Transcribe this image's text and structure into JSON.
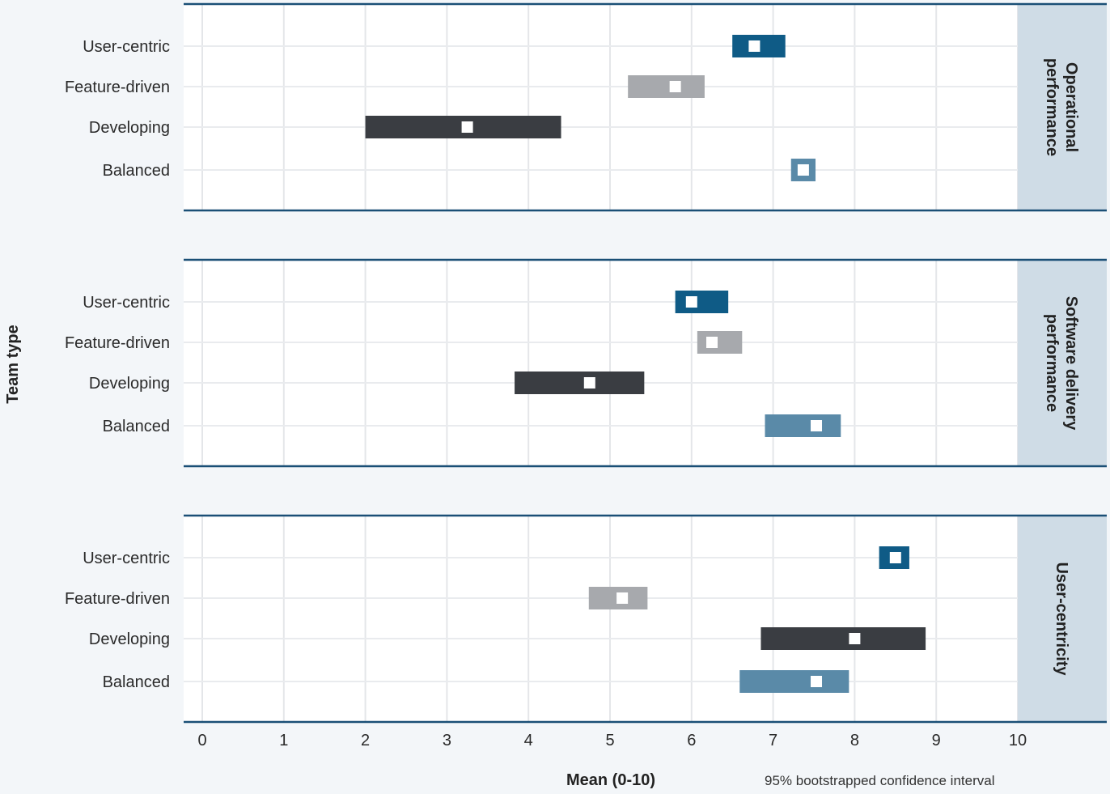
{
  "chart_data": {
    "type": "interval",
    "ylabel": "Team type",
    "xlabel": "Mean (0-10)",
    "note": "95% bootstrapped confidence interval",
    "xlim": [
      0,
      10
    ],
    "xticks": [
      "0",
      "1",
      "2",
      "3",
      "4",
      "5",
      "6",
      "7",
      "8",
      "9",
      "10"
    ],
    "categories": [
      "User-centric",
      "Feature-driven",
      "Developing",
      "Balanced"
    ],
    "colors": {
      "User-centric": "#0f5b86",
      "Feature-driven": "#a7a9ad",
      "Developing": "#3a3d42",
      "Balanced": "#5a8aa8"
    },
    "panels": [
      {
        "label": "Operational performance",
        "label_lines": [
          "Operational",
          "performance"
        ],
        "series": [
          {
            "category": "User-centric",
            "mean": 6.77,
            "low": 6.5,
            "high": 7.15
          },
          {
            "category": "Feature-driven",
            "mean": 5.8,
            "low": 5.22,
            "high": 6.16
          },
          {
            "category": "Developing",
            "mean": 3.25,
            "low": 2.0,
            "high": 4.4
          },
          {
            "category": "Balanced",
            "mean": 7.37,
            "low": 7.22,
            "high": 7.52
          }
        ]
      },
      {
        "label": "Software delivery performance",
        "label_lines": [
          "Software delivery",
          "performance"
        ],
        "series": [
          {
            "category": "User-centric",
            "mean": 6.0,
            "low": 5.8,
            "high": 6.45
          },
          {
            "category": "Feature-driven",
            "mean": 6.25,
            "low": 6.07,
            "high": 6.62
          },
          {
            "category": "Developing",
            "mean": 4.75,
            "low": 3.83,
            "high": 5.42
          },
          {
            "category": "Balanced",
            "mean": 7.53,
            "low": 6.9,
            "high": 7.83
          }
        ]
      },
      {
        "label": "User-centricity",
        "label_lines": [
          "User-centricity"
        ],
        "series": [
          {
            "category": "User-centric",
            "mean": 8.5,
            "low": 8.3,
            "high": 8.67
          },
          {
            "category": "Feature-driven",
            "mean": 5.15,
            "low": 4.74,
            "high": 5.46
          },
          {
            "category": "Developing",
            "mean": 8.0,
            "low": 6.85,
            "high": 8.87
          },
          {
            "category": "Balanced",
            "mean": 7.53,
            "low": 6.59,
            "high": 7.93
          }
        ]
      }
    ]
  }
}
